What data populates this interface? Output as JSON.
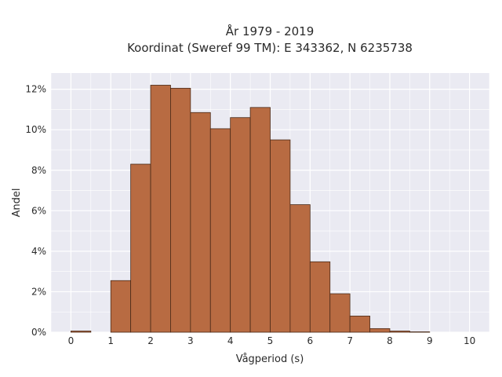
{
  "chart_data": {
    "type": "bar",
    "title_line1": "År 1979 - 2019",
    "title_line2": "Koordinat (Sweref 99 TM): E 343362, N 6235738",
    "xlabel": "Vågperiod (s)",
    "ylabel": "Andel",
    "xlim": [
      -0.5,
      10.5
    ],
    "ylim": [
      0,
      12.8
    ],
    "bin_width": 0.5,
    "x_ticks": [
      0,
      1,
      2,
      3,
      4,
      5,
      6,
      7,
      8,
      9,
      10
    ],
    "y_ticks": [
      0,
      2,
      4,
      6,
      8,
      10,
      12
    ],
    "y_tick_labels": [
      "0%",
      "2%",
      "4%",
      "6%",
      "8%",
      "10%",
      "12%"
    ],
    "bins": [
      {
        "start": 0.0,
        "value": 0.06
      },
      {
        "start": 0.5,
        "value": 0.0
      },
      {
        "start": 1.0,
        "value": 2.55
      },
      {
        "start": 1.5,
        "value": 8.3
      },
      {
        "start": 2.0,
        "value": 12.2
      },
      {
        "start": 2.5,
        "value": 12.05
      },
      {
        "start": 3.0,
        "value": 10.85
      },
      {
        "start": 3.5,
        "value": 10.05
      },
      {
        "start": 4.0,
        "value": 10.6
      },
      {
        "start": 4.5,
        "value": 11.1
      },
      {
        "start": 5.0,
        "value": 9.5
      },
      {
        "start": 5.5,
        "value": 6.3
      },
      {
        "start": 6.0,
        "value": 3.48
      },
      {
        "start": 6.5,
        "value": 1.9
      },
      {
        "start": 7.0,
        "value": 0.8
      },
      {
        "start": 7.5,
        "value": 0.18
      },
      {
        "start": 8.0,
        "value": 0.06
      },
      {
        "start": 8.5,
        "value": 0.02
      }
    ],
    "grid": true,
    "colors": {
      "plot_background": "#eaeaf2",
      "grid": "#ffffff",
      "bar_fill": "#b86b42",
      "bar_edge": "#4a2a18"
    }
  }
}
